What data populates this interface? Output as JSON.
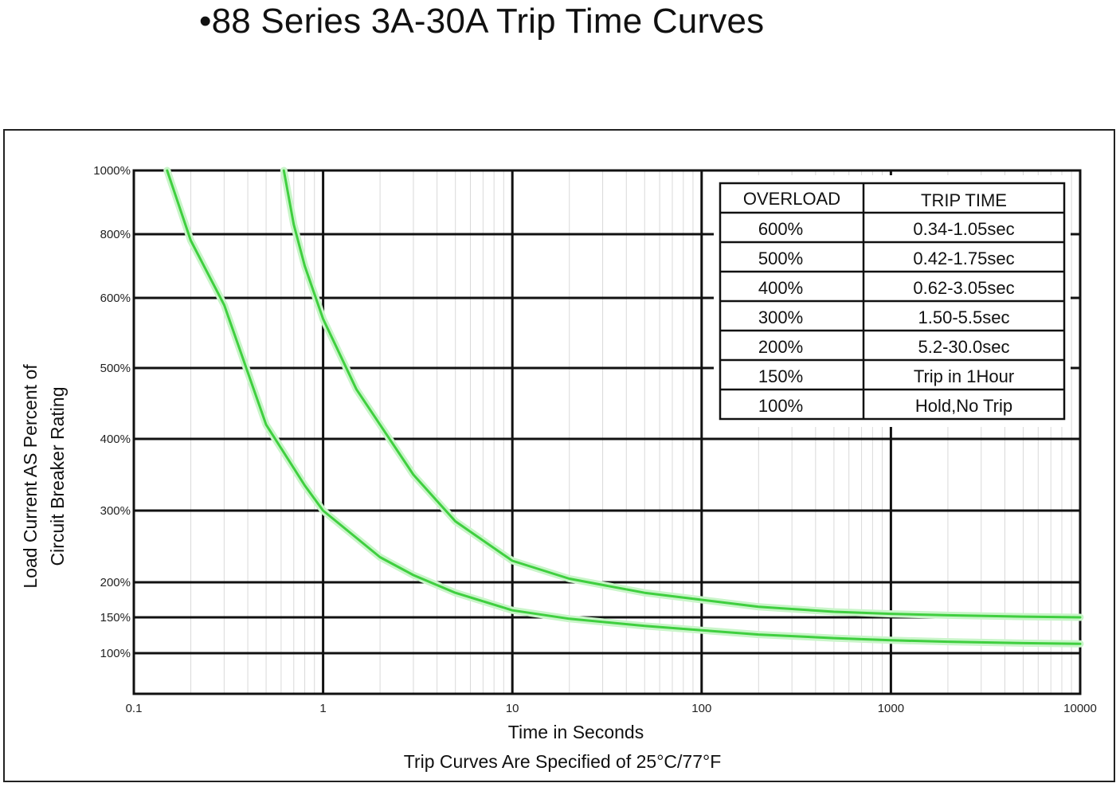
{
  "title": "•88 Series 3A-30A Trip Time Curves",
  "chart_data": {
    "type": "line",
    "title": "•88 Series 3A-30A Trip Time Curves",
    "xlabel": "Time in Seconds",
    "footnote": "Trip Curves Are Specified of 25°C/77°F",
    "ylabel_lines": [
      "Load Current AS Percent of",
      "Circuit Breaker Rating"
    ],
    "x_scale": "log",
    "xlim": [
      0.1,
      10000
    ],
    "x_ticks": [
      {
        "value": 0.1,
        "label": "0.1"
      },
      {
        "value": 1,
        "label": "1"
      },
      {
        "value": 10,
        "label": "10"
      },
      {
        "value": 100,
        "label": "100"
      },
      {
        "value": 1000,
        "label": "1000"
      },
      {
        "value": 10000,
        "label": "10000"
      }
    ],
    "y_ticks": [
      {
        "value": 1000,
        "label": "1000%"
      },
      {
        "value": 800,
        "label": "800%"
      },
      {
        "value": 600,
        "label": "600%"
      },
      {
        "value": 500,
        "label": "500%"
      },
      {
        "value": 400,
        "label": "400%"
      },
      {
        "value": 300,
        "label": "300%"
      },
      {
        "value": 200,
        "label": "200%"
      },
      {
        "value": 150,
        "label": "150%"
      },
      {
        "value": 100,
        "label": "100%"
      }
    ],
    "grid": true,
    "line_color": "#3fcf3f",
    "series": [
      {
        "x": [
          0.15,
          0.2,
          0.3,
          0.5,
          0.8,
          1,
          2,
          3,
          5,
          10,
          20,
          50,
          100,
          200,
          500,
          1000,
          2000,
          5000,
          10000
        ],
        "y": [
          1000,
          780,
          590,
          420,
          335,
          300,
          235,
          210,
          185,
          160,
          148,
          138,
          132,
          126,
          121,
          118,
          116,
          114,
          113
        ]
      },
      {
        "x": [
          0.62,
          0.7,
          0.8,
          1,
          1.5,
          2,
          3,
          5,
          10,
          20,
          50,
          100,
          200,
          500,
          1000,
          2000,
          5000,
          10000
        ],
        "y": [
          1000,
          830,
          700,
          570,
          470,
          420,
          350,
          285,
          230,
          205,
          185,
          175,
          165,
          158,
          155,
          153,
          151,
          150
        ]
      }
    ]
  },
  "legend_table": {
    "headers": [
      "OVERLOAD",
      "TRIP TIME"
    ],
    "rows": [
      [
        "600%",
        "0.34-1.05sec"
      ],
      [
        "500%",
        "0.42-1.75sec"
      ],
      [
        "400%",
        "0.62-3.05sec"
      ],
      [
        "300%",
        "1.50-5.5sec"
      ],
      [
        "200%",
        "5.2-30.0sec"
      ],
      [
        "150%",
        "Trip in 1Hour"
      ],
      [
        "100%",
        "Hold,No Trip"
      ]
    ]
  }
}
